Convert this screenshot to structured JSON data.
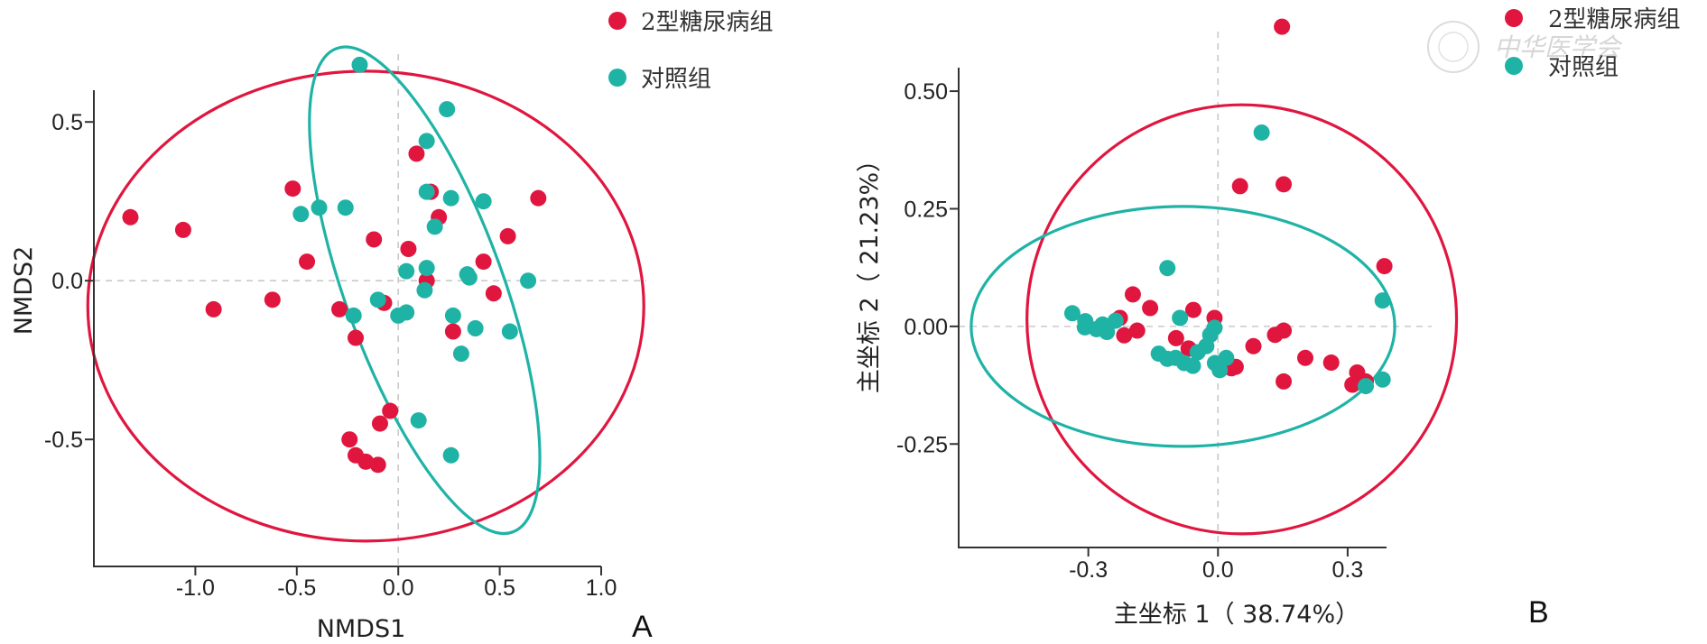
{
  "colors": {
    "t2dm": "#e0163f",
    "control": "#1fb3a6",
    "axis": "#333333",
    "grid": "#c9c9c9"
  },
  "watermark": {
    "text": "中华医学会"
  },
  "chart_data": [
    {
      "type": "scatter",
      "panel_label": "A",
      "xlabel": "NMDS1",
      "ylabel": "NMDS2",
      "xlim": [
        -1.5,
        1.0
      ],
      "ylim": [
        -0.9,
        0.6
      ],
      "xticks": [
        -1.0,
        -0.5,
        0.0,
        0.5,
        1.0
      ],
      "xtick_labels": [
        "-1.0",
        "-0.5",
        "0.0",
        "0.5",
        "1.0"
      ],
      "yticks": [
        -0.5,
        0.0,
        0.5
      ],
      "ytick_labels": [
        "-0.5",
        "0.0",
        "0.5"
      ],
      "reference_lines": {
        "x": 0,
        "y": 0
      },
      "legend": {
        "position": "top-right",
        "entries": [
          "2型糖尿病组",
          "对照组"
        ]
      },
      "series": [
        {
          "name": "2型糖尿病组",
          "color_key": "t2dm",
          "points": [
            [
              -1.32,
              0.2
            ],
            [
              -1.06,
              0.16
            ],
            [
              -0.91,
              -0.09
            ],
            [
              -0.62,
              -0.06
            ],
            [
              -0.52,
              0.29
            ],
            [
              -0.45,
              0.06
            ],
            [
              -0.29,
              -0.09
            ],
            [
              -0.21,
              -0.18
            ],
            [
              -0.12,
              0.13
            ],
            [
              -0.07,
              -0.07
            ],
            [
              0.05,
              0.1
            ],
            [
              0.09,
              0.4
            ],
            [
              0.14,
              0.0
            ],
            [
              0.16,
              0.28
            ],
            [
              0.2,
              0.2
            ],
            [
              0.27,
              -0.16
            ],
            [
              0.42,
              0.06
            ],
            [
              0.47,
              -0.04
            ],
            [
              0.54,
              0.14
            ],
            [
              0.69,
              0.26
            ],
            [
              -0.24,
              -0.5
            ],
            [
              -0.21,
              -0.55
            ],
            [
              -0.16,
              -0.57
            ],
            [
              -0.1,
              -0.58
            ],
            [
              -0.09,
              -0.45
            ],
            [
              -0.04,
              -0.41
            ]
          ]
        },
        {
          "name": "对照组",
          "color_key": "control",
          "points": [
            [
              -0.19,
              0.68
            ],
            [
              -0.48,
              0.21
            ],
            [
              -0.39,
              0.23
            ],
            [
              -0.26,
              0.23
            ],
            [
              -0.22,
              -0.11
            ],
            [
              -0.1,
              -0.06
            ],
            [
              0.0,
              -0.11
            ],
            [
              0.04,
              -0.1
            ],
            [
              0.04,
              0.03
            ],
            [
              0.1,
              -0.44
            ],
            [
              0.14,
              0.44
            ],
            [
              0.14,
              0.28
            ],
            [
              0.14,
              0.04
            ],
            [
              0.13,
              -0.03
            ],
            [
              0.18,
              0.17
            ],
            [
              0.24,
              0.54
            ],
            [
              0.26,
              0.26
            ],
            [
              0.27,
              -0.11
            ],
            [
              0.26,
              -0.55
            ],
            [
              0.31,
              -0.23
            ],
            [
              0.34,
              0.02
            ],
            [
              0.35,
              0.01
            ],
            [
              0.38,
              -0.15
            ],
            [
              0.42,
              0.25
            ],
            [
              0.55,
              -0.16
            ],
            [
              0.64,
              0.0
            ]
          ]
        }
      ],
      "ellipses": [
        {
          "series": "2型糖尿病组",
          "cx": -0.16,
          "cy": -0.08,
          "rx": 1.37,
          "ry": 0.74,
          "angle_deg": 0
        },
        {
          "series": "对照组",
          "cx": 0.13,
          "cy": -0.03,
          "rx": 0.84,
          "ry": 0.36,
          "angle_deg": -110
        }
      ]
    },
    {
      "type": "scatter",
      "panel_label": "B",
      "xlabel": "主坐标 1（ 38.74%）",
      "ylabel": "主坐标 2（ 21.23%）",
      "xlim": [
        -0.6,
        0.39
      ],
      "ylim": [
        -0.47,
        0.55
      ],
      "xticks": [
        -0.3,
        0.0,
        0.3
      ],
      "xtick_labels": [
        "-0.3",
        "0.0",
        "0.3"
      ],
      "yticks": [
        -0.25,
        0.0,
        0.25,
        0.5
      ],
      "ytick_labels": [
        "-0.25",
        "0.00",
        "0.25",
        "0.50"
      ],
      "reference_lines": {
        "x": 0,
        "y": 0
      },
      "legend": {
        "position": "top-right",
        "entries": [
          "2型糖尿病组",
          "对照组"
        ]
      },
      "series": [
        {
          "name": "2型糖尿病组",
          "color_key": "t2dm",
          "points": [
            [
              0.148,
              0.637
            ],
            [
              0.051,
              0.298
            ],
            [
              0.152,
              0.302
            ],
            [
              0.385,
              0.128
            ],
            [
              -0.197,
              0.068
            ],
            [
              -0.157,
              0.039
            ],
            [
              -0.227,
              0.018
            ],
            [
              -0.187,
              -0.009
            ],
            [
              -0.217,
              -0.019
            ],
            [
              -0.057,
              0.035
            ],
            [
              -0.008,
              0.018
            ],
            [
              -0.097,
              -0.025
            ],
            [
              -0.068,
              -0.047
            ],
            [
              0.082,
              -0.042
            ],
            [
              0.152,
              -0.009
            ],
            [
              0.132,
              -0.018
            ],
            [
              0.202,
              -0.067
            ],
            [
              0.262,
              -0.077
            ],
            [
              0.322,
              -0.098
            ],
            [
              0.342,
              -0.117
            ],
            [
              0.311,
              -0.124
            ],
            [
              0.041,
              -0.086
            ],
            [
              0.031,
              -0.089
            ],
            [
              0.152,
              -0.117
            ]
          ]
        },
        {
          "name": "对照组",
          "color_key": "control",
          "points": [
            [
              0.101,
              0.412
            ],
            [
              -0.117,
              0.124
            ],
            [
              -0.337,
              0.028
            ],
            [
              -0.307,
              0.011
            ],
            [
              -0.308,
              -0.002
            ],
            [
              -0.281,
              -0.006
            ],
            [
              -0.267,
              0.004
            ],
            [
              -0.257,
              -0.012
            ],
            [
              -0.237,
              0.012
            ],
            [
              -0.088,
              0.018
            ],
            [
              -0.137,
              -0.058
            ],
            [
              -0.117,
              -0.069
            ],
            [
              -0.098,
              -0.067
            ],
            [
              -0.078,
              -0.078
            ],
            [
              -0.058,
              -0.084
            ],
            [
              -0.047,
              -0.055
            ],
            [
              -0.027,
              -0.042
            ],
            [
              -0.018,
              -0.018
            ],
            [
              -0.008,
              -0.003
            ],
            [
              -0.007,
              -0.078
            ],
            [
              0.004,
              -0.093
            ],
            [
              0.019,
              -0.067
            ],
            [
              0.381,
              0.055
            ],
            [
              0.381,
              -0.113
            ],
            [
              0.342,
              -0.127
            ]
          ]
        }
      ],
      "ellipses": [
        {
          "series": "2型糖尿病组",
          "cx": 0.055,
          "cy": 0.015,
          "rx": 0.497,
          "ry": 0.456,
          "angle_deg": 0
        },
        {
          "series": "对照组",
          "cx": -0.081,
          "cy": -0.0,
          "rx": 0.49,
          "ry": 0.255,
          "angle_deg": 0
        }
      ]
    }
  ]
}
